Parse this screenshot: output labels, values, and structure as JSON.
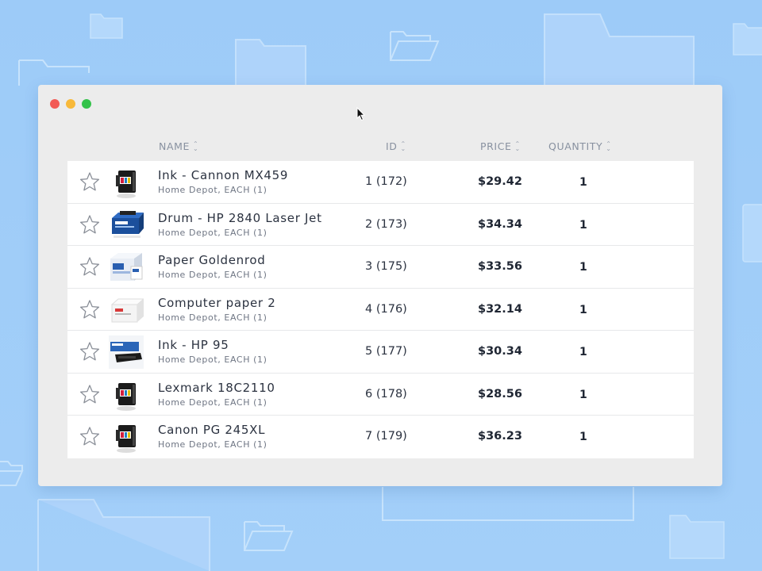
{
  "columns": {
    "name": "NAME",
    "id": "ID",
    "price": "PRICE",
    "quantity": "QUANTITY"
  },
  "rows": [
    {
      "name": "Ink - Cannon MX459",
      "sub": "Home Depot, EACH (1)",
      "id": "1 (172)",
      "price": "$29.42",
      "qty": "1",
      "thumb": "ink-cartridge"
    },
    {
      "name": "Drum - HP 2840 Laser Jet",
      "sub": "Home Depot, EACH (1)",
      "id": "2 (173)",
      "price": "$34.34",
      "qty": "1",
      "thumb": "toner-box"
    },
    {
      "name": "Paper Goldenrod",
      "sub": "Home Depot, EACH (1)",
      "id": "3 (175)",
      "price": "$33.56",
      "qty": "1",
      "thumb": "paper-box"
    },
    {
      "name": "Computer paper 2",
      "sub": "Home Depot, EACH (1)",
      "id": "4 (176)",
      "price": "$32.14",
      "qty": "1",
      "thumb": "paper-ream"
    },
    {
      "name": "Ink - HP 95",
      "sub": "Home Depot, EACH (1)",
      "id": "5 (177)",
      "price": "$30.34",
      "qty": "1",
      "thumb": "toner-cartridge"
    },
    {
      "name": "Lexmark 18C2110",
      "sub": "Home Depot, EACH (1)",
      "id": "6 (178)",
      "price": "$28.56",
      "qty": "1",
      "thumb": "ink-cartridge"
    },
    {
      "name": "Canon PG 245XL",
      "sub": "Home Depot, EACH (1)",
      "id": "7 (179)",
      "price": "$36.23",
      "qty": "1",
      "thumb": "ink-cartridge"
    }
  ],
  "colors": {
    "background": "#9dcbf8",
    "window": "#ececec",
    "close": "#f25a55",
    "minimize": "#f8b93a",
    "maximize": "#33c24a"
  }
}
